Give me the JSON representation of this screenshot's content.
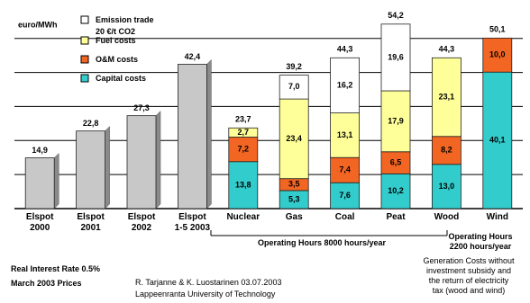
{
  "chart_data": {
    "type": "stacked-bar",
    "y_label": "euro/MWh",
    "categories": [
      "Elspot\n2000",
      "Elspot\n2001",
      "Elspot\n2002",
      "Elspot\n1-5 2003",
      "Nuclear",
      "Gas",
      "Coal",
      "Peat",
      "Wood",
      "Wind"
    ],
    "series": [
      {
        "color": "#c8c8c8",
        "stacked": false,
        "values": [
          14.9,
          22.8,
          27.3,
          42.4,
          null,
          null,
          null,
          null,
          null,
          null
        ],
        "value_labels": [
          "14,9",
          "22,8",
          "27,3",
          "42,4",
          null,
          null,
          null,
          null,
          null,
          null
        ]
      },
      {
        "name": "Capital costs",
        "color": "#33cccc",
        "stacked": true,
        "values": [
          null,
          null,
          null,
          null,
          13.8,
          5.3,
          7.6,
          10.2,
          13.0,
          40.1
        ],
        "value_labels": [
          null,
          null,
          null,
          null,
          "13,8",
          "5,3",
          "7,6",
          "10,2",
          "13,0",
          "40,1"
        ]
      },
      {
        "name": "O&M costs",
        "color": "#f26522",
        "stacked": true,
        "values": [
          null,
          null,
          null,
          null,
          7.2,
          3.5,
          7.4,
          6.5,
          8.2,
          10.0
        ],
        "value_labels": [
          null,
          null,
          null,
          null,
          "7,2",
          "3,5",
          "7,4",
          "6,5",
          "8,2",
          "10,0"
        ]
      },
      {
        "name": "Fuel costs",
        "color": "#ffff99",
        "stacked": true,
        "values": [
          null,
          null,
          null,
          null,
          2.7,
          23.4,
          13.1,
          17.9,
          23.1,
          null
        ],
        "value_labels": [
          null,
          null,
          null,
          null,
          "2,7",
          "23,4",
          "13,1",
          "17,9",
          "23,1",
          null
        ]
      },
      {
        "name": "Emission trade\n20 €/t CO2",
        "color": "#ffffff",
        "stacked": true,
        "values": [
          null,
          null,
          null,
          null,
          null,
          7.0,
          16.2,
          19.6,
          null,
          null
        ],
        "value_labels": [
          null,
          null,
          null,
          null,
          null,
          "7,0",
          "16,2",
          "19,6",
          null,
          null
        ]
      }
    ],
    "totals": {
      "values": [
        null,
        null,
        null,
        null,
        23.7,
        39.2,
        44.3,
        54.2,
        44.3,
        50.1
      ],
      "value_labels": [
        null,
        null,
        null,
        null,
        "23,7",
        "39,2",
        "44,3",
        "54,2",
        "44,3",
        "50,1"
      ]
    },
    "ylim": [
      0,
      56
    ],
    "yticks": [
      0,
      10,
      20,
      30,
      40,
      50
    ],
    "grid": true,
    "annotations": {
      "operating_8000": "Operating Hours 8000 hours/year",
      "operating_2200": "Operating Hours\n2200 hours/year",
      "interest": "Real Interest Rate 0.5%",
      "prices": "March 2003 Prices",
      "authors": "R. Tarjanne & K. Luostarinen 03.07.2003",
      "university": "Lappeenranta University of Technology",
      "note": "Generation Costs without\ninvestment subsidy and\nthe return of electricity\ntax (wood and wind)"
    }
  }
}
